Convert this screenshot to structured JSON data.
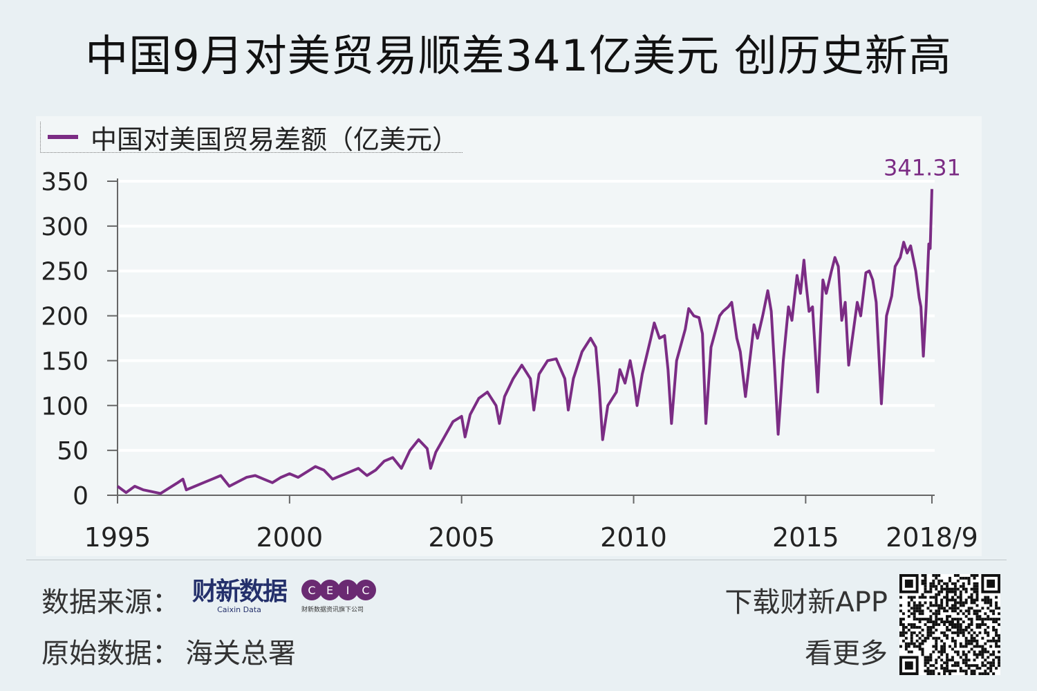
{
  "title": "中国9月对美贸易顺差341亿美元 创历史新高",
  "colors": {
    "line": "#7b2c84",
    "grid": "#ffffff",
    "axis": "#666666",
    "background": "#e9f0f3",
    "panel": "#f2f6f7"
  },
  "chart_data": {
    "type": "line",
    "legend": "中国对美国贸易差额（亿美元）",
    "legend_position": "top-left",
    "grid": true,
    "ylim": [
      0,
      350
    ],
    "yticks": [
      0,
      50,
      100,
      150,
      200,
      250,
      300,
      350
    ],
    "xlim": [
      1995.0,
      2018.75
    ],
    "xticks": [
      {
        "value": 1995,
        "label": "1995"
      },
      {
        "value": 2000,
        "label": "2000"
      },
      {
        "value": 2005,
        "label": "2005"
      },
      {
        "value": 2010,
        "label": "2010"
      },
      {
        "value": 2015,
        "label": "2015"
      },
      {
        "value": 2018.67,
        "label": "2018/9"
      }
    ],
    "annotation": {
      "x": 2018.67,
      "y": 341.31,
      "text": "341.31"
    },
    "series": [
      {
        "name": "中国对美国贸易差额（亿美元）",
        "points": [
          [
            1995.0,
            10
          ],
          [
            1995.25,
            3
          ],
          [
            1995.5,
            10
          ],
          [
            1995.75,
            6
          ],
          [
            1996.0,
            4
          ],
          [
            1996.25,
            2
          ],
          [
            1996.5,
            8
          ],
          [
            1996.75,
            14
          ],
          [
            1996.9,
            18
          ],
          [
            1997.0,
            6
          ],
          [
            1997.25,
            10
          ],
          [
            1997.5,
            14
          ],
          [
            1997.75,
            18
          ],
          [
            1998.0,
            22
          ],
          [
            1998.25,
            10
          ],
          [
            1998.5,
            15
          ],
          [
            1998.75,
            20
          ],
          [
            1999.0,
            22
          ],
          [
            1999.25,
            18
          ],
          [
            1999.5,
            14
          ],
          [
            1999.75,
            20
          ],
          [
            2000.0,
            24
          ],
          [
            2000.25,
            20
          ],
          [
            2000.5,
            26
          ],
          [
            2000.75,
            32
          ],
          [
            2001.0,
            28
          ],
          [
            2001.25,
            18
          ],
          [
            2001.5,
            22
          ],
          [
            2001.75,
            26
          ],
          [
            2002.0,
            30
          ],
          [
            2002.25,
            22
          ],
          [
            2002.5,
            28
          ],
          [
            2002.75,
            38
          ],
          [
            2003.0,
            42
          ],
          [
            2003.25,
            30
          ],
          [
            2003.5,
            50
          ],
          [
            2003.75,
            62
          ],
          [
            2004.0,
            52
          ],
          [
            2004.1,
            30
          ],
          [
            2004.25,
            48
          ],
          [
            2004.5,
            65
          ],
          [
            2004.75,
            82
          ],
          [
            2005.0,
            88
          ],
          [
            2005.1,
            65
          ],
          [
            2005.25,
            90
          ],
          [
            2005.5,
            108
          ],
          [
            2005.75,
            115
          ],
          [
            2006.0,
            100
          ],
          [
            2006.1,
            80
          ],
          [
            2006.25,
            110
          ],
          [
            2006.5,
            130
          ],
          [
            2006.75,
            145
          ],
          [
            2007.0,
            130
          ],
          [
            2007.1,
            95
          ],
          [
            2007.25,
            135
          ],
          [
            2007.5,
            150
          ],
          [
            2007.75,
            152
          ],
          [
            2008.0,
            130
          ],
          [
            2008.1,
            95
          ],
          [
            2008.25,
            130
          ],
          [
            2008.5,
            160
          ],
          [
            2008.75,
            175
          ],
          [
            2008.9,
            165
          ],
          [
            2009.0,
            120
          ],
          [
            2009.1,
            62
          ],
          [
            2009.25,
            100
          ],
          [
            2009.5,
            115
          ],
          [
            2009.6,
            140
          ],
          [
            2009.75,
            125
          ],
          [
            2009.9,
            150
          ],
          [
            2010.0,
            130
          ],
          [
            2010.1,
            100
          ],
          [
            2010.25,
            135
          ],
          [
            2010.5,
            175
          ],
          [
            2010.6,
            192
          ],
          [
            2010.75,
            175
          ],
          [
            2010.9,
            178
          ],
          [
            2011.0,
            140
          ],
          [
            2011.1,
            80
          ],
          [
            2011.25,
            150
          ],
          [
            2011.5,
            185
          ],
          [
            2011.6,
            208
          ],
          [
            2011.75,
            200
          ],
          [
            2011.9,
            198
          ],
          [
            2012.0,
            180
          ],
          [
            2012.1,
            80
          ],
          [
            2012.25,
            165
          ],
          [
            2012.5,
            200
          ],
          [
            2012.6,
            205
          ],
          [
            2012.75,
            210
          ],
          [
            2012.85,
            215
          ],
          [
            2013.0,
            175
          ],
          [
            2013.1,
            160
          ],
          [
            2013.25,
            110
          ],
          [
            2013.5,
            190
          ],
          [
            2013.6,
            175
          ],
          [
            2013.75,
            200
          ],
          [
            2013.9,
            228
          ],
          [
            2014.0,
            205
          ],
          [
            2014.1,
            140
          ],
          [
            2014.2,
            68
          ],
          [
            2014.35,
            150
          ],
          [
            2014.5,
            210
          ],
          [
            2014.6,
            195
          ],
          [
            2014.75,
            245
          ],
          [
            2014.85,
            225
          ],
          [
            2014.95,
            262
          ],
          [
            2015.0,
            240
          ],
          [
            2015.1,
            205
          ],
          [
            2015.2,
            210
          ],
          [
            2015.35,
            115
          ],
          [
            2015.5,
            240
          ],
          [
            2015.6,
            225
          ],
          [
            2015.75,
            250
          ],
          [
            2015.85,
            265
          ],
          [
            2015.95,
            255
          ],
          [
            2016.05,
            195
          ],
          [
            2016.15,
            215
          ],
          [
            2016.25,
            145
          ],
          [
            2016.5,
            215
          ],
          [
            2016.6,
            200
          ],
          [
            2016.75,
            248
          ],
          [
            2016.85,
            250
          ],
          [
            2016.95,
            240
          ],
          [
            2017.05,
            215
          ],
          [
            2017.2,
            102
          ],
          [
            2017.35,
            200
          ],
          [
            2017.5,
            222
          ],
          [
            2017.6,
            255
          ],
          [
            2017.75,
            265
          ],
          [
            2017.85,
            282
          ],
          [
            2017.95,
            270
          ],
          [
            2018.05,
            278
          ],
          [
            2018.2,
            250
          ],
          [
            2018.3,
            220
          ],
          [
            2018.35,
            210
          ],
          [
            2018.42,
            155
          ],
          [
            2018.5,
            210
          ],
          [
            2018.58,
            280
          ],
          [
            2018.62,
            275
          ],
          [
            2018.67,
            341.31
          ]
        ]
      }
    ]
  },
  "footer": {
    "source_label": "数据来源：",
    "caixin_logo": "财新数据",
    "caixin_logo_en": "Caixin Data",
    "ceic_letters": [
      "C",
      "E",
      "I",
      "C"
    ],
    "ceic_sub": "财新数据资讯旗下公司",
    "original_label": "原始数据：",
    "original_value": "海关总署",
    "download_text": "下载财新APP",
    "more_text": "看更多"
  }
}
